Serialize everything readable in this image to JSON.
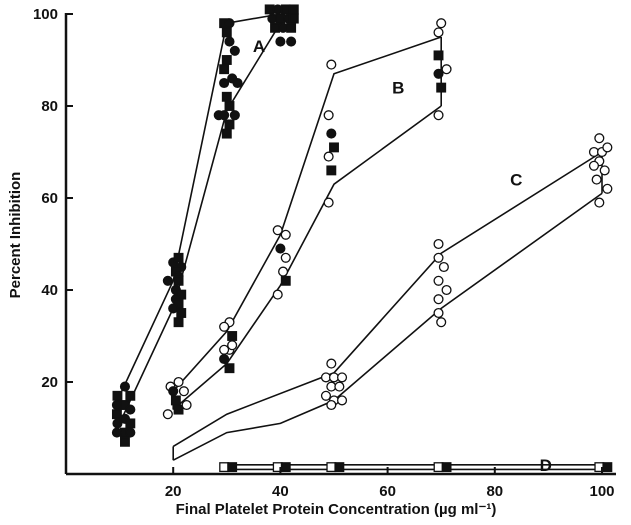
{
  "chart_data": {
    "type": "scatter",
    "xlabel": "Final Platelet Protein Concentration (µg ml⁻¹)",
    "ylabel": "Percent Inhibition",
    "xlim": [
      0,
      100
    ],
    "ylim": [
      0,
      100
    ],
    "xticks": [
      20,
      40,
      60,
      80,
      100
    ],
    "yticks": [
      20,
      40,
      60,
      80,
      100
    ],
    "xtick_labels": [
      "20",
      "40",
      "60",
      "80",
      "100"
    ],
    "ytick_labels": [
      "20",
      "40",
      "60",
      "80",
      "100"
    ],
    "grid": false,
    "colors": {
      "ink": "#111111",
      "background": "#ffffff"
    },
    "groups": [
      {
        "label": "A",
        "label_at": [
          36,
          93
        ],
        "band": {
          "upper": [
            [
              10,
              17
            ],
            [
              20,
              42
            ],
            [
              30,
              98
            ],
            [
              40,
              100
            ]
          ],
          "lower": [
            [
              10,
              11
            ],
            [
              20,
              36
            ],
            [
              30,
              79
            ],
            [
              40,
              98
            ]
          ]
        },
        "points": [
          {
            "x": 9.6,
            "y": 17,
            "m": "sq",
            "f": 1
          },
          {
            "x": 11,
            "y": 19,
            "m": "circ",
            "f": 1
          },
          {
            "x": 12,
            "y": 17,
            "m": "sq",
            "f": 1
          },
          {
            "x": 9.5,
            "y": 15,
            "m": "circ",
            "f": 1
          },
          {
            "x": 11,
            "y": 15,
            "m": "sq",
            "f": 1
          },
          {
            "x": 12,
            "y": 14,
            "m": "circ",
            "f": 1
          },
          {
            "x": 9.5,
            "y": 13,
            "m": "sq",
            "f": 1
          },
          {
            "x": 11,
            "y": 12,
            "m": "circ",
            "f": 1
          },
          {
            "x": 12,
            "y": 11,
            "m": "sq",
            "f": 1
          },
          {
            "x": 9.6,
            "y": 11,
            "m": "circ",
            "f": 1
          },
          {
            "x": 11,
            "y": 9,
            "m": "sq",
            "f": 1
          },
          {
            "x": 9.5,
            "y": 9,
            "m": "circ",
            "f": 1
          },
          {
            "x": 12,
            "y": 9,
            "m": "circ",
            "f": 1
          },
          {
            "x": 11,
            "y": 7,
            "m": "sq",
            "f": 1
          },
          {
            "x": 20,
            "y": 46,
            "m": "circ",
            "f": 1
          },
          {
            "x": 21,
            "y": 47,
            "m": "sq",
            "f": 1
          },
          {
            "x": 21.5,
            "y": 45,
            "m": "circ",
            "f": 1
          },
          {
            "x": 20.5,
            "y": 44,
            "m": "sq",
            "f": 1
          },
          {
            "x": 21,
            "y": 43,
            "m": "circ",
            "f": 1
          },
          {
            "x": 19,
            "y": 42,
            "m": "circ",
            "f": 1
          },
          {
            "x": 21,
            "y": 42,
            "m": "sq",
            "f": 1
          },
          {
            "x": 20.5,
            "y": 40,
            "m": "circ",
            "f": 1
          },
          {
            "x": 21.5,
            "y": 39,
            "m": "sq",
            "f": 1
          },
          {
            "x": 20.5,
            "y": 38,
            "m": "circ",
            "f": 1
          },
          {
            "x": 21,
            "y": 37,
            "m": "sq",
            "f": 1
          },
          {
            "x": 20,
            "y": 36,
            "m": "circ",
            "f": 1
          },
          {
            "x": 21.5,
            "y": 35,
            "m": "sq",
            "f": 1
          },
          {
            "x": 21,
            "y": 33,
            "m": "sq",
            "f": 1
          },
          {
            "x": 29.5,
            "y": 98,
            "m": "sq",
            "f": 1
          },
          {
            "x": 30.5,
            "y": 98,
            "m": "circ",
            "f": 1
          },
          {
            "x": 30,
            "y": 96,
            "m": "sq",
            "f": 1
          },
          {
            "x": 30.5,
            "y": 94,
            "m": "circ",
            "f": 1
          },
          {
            "x": 31.5,
            "y": 92,
            "m": "circ",
            "f": 1
          },
          {
            "x": 30,
            "y": 90,
            "m": "sq",
            "f": 1
          },
          {
            "x": 29.5,
            "y": 88,
            "m": "sq",
            "f": 1
          },
          {
            "x": 31,
            "y": 86,
            "m": "circ",
            "f": 1
          },
          {
            "x": 29.5,
            "y": 85,
            "m": "circ",
            "f": 1
          },
          {
            "x": 32,
            "y": 85,
            "m": "circ",
            "f": 1
          },
          {
            "x": 30,
            "y": 82,
            "m": "sq",
            "f": 1
          },
          {
            "x": 30.5,
            "y": 80,
            "m": "sq",
            "f": 1
          },
          {
            "x": 28.5,
            "y": 78,
            "m": "circ",
            "f": 1
          },
          {
            "x": 29.5,
            "y": 78,
            "m": "circ",
            "f": 1
          },
          {
            "x": 31.5,
            "y": 78,
            "m": "circ",
            "f": 1
          },
          {
            "x": 30.5,
            "y": 76,
            "m": "sq",
            "f": 1
          },
          {
            "x": 30,
            "y": 74,
            "m": "sq",
            "f": 1
          },
          {
            "x": 38,
            "y": 101,
            "m": "sq",
            "f": 1
          },
          {
            "x": 39.5,
            "y": 101,
            "m": "circ",
            "f": 1
          },
          {
            "x": 41,
            "y": 101,
            "m": "sq",
            "f": 1
          },
          {
            "x": 42.5,
            "y": 101,
            "m": "sq",
            "f": 1
          },
          {
            "x": 38.5,
            "y": 99,
            "m": "circ",
            "f": 1
          },
          {
            "x": 40,
            "y": 99,
            "m": "sq",
            "f": 1
          },
          {
            "x": 41.5,
            "y": 99,
            "m": "circ",
            "f": 1
          },
          {
            "x": 42.5,
            "y": 99,
            "m": "sq",
            "f": 1
          },
          {
            "x": 39,
            "y": 97,
            "m": "sq",
            "f": 1
          },
          {
            "x": 40.5,
            "y": 97,
            "m": "circ",
            "f": 1
          },
          {
            "x": 42,
            "y": 97,
            "m": "sq",
            "f": 1
          },
          {
            "x": 40,
            "y": 94,
            "m": "circ",
            "f": 1
          },
          {
            "x": 42,
            "y": 94,
            "m": "circ",
            "f": 1
          }
        ]
      },
      {
        "label": "B",
        "label_at": [
          62,
          84
        ],
        "band": {
          "upper": [
            [
              20,
              18
            ],
            [
              30,
              31
            ],
            [
              40,
              52
            ],
            [
              50,
              87
            ],
            [
              70,
              95
            ]
          ],
          "lower": [
            [
              20,
              14
            ],
            [
              30,
              24
            ],
            [
              40,
              41
            ],
            [
              50,
              63
            ],
            [
              70,
              80
            ]
          ]
        },
        "points": [
          {
            "x": 19.5,
            "y": 19,
            "m": "circ",
            "f": 0
          },
          {
            "x": 21,
            "y": 20,
            "m": "circ",
            "f": 0
          },
          {
            "x": 22,
            "y": 18,
            "m": "circ",
            "f": 0
          },
          {
            "x": 20,
            "y": 18,
            "m": "circ",
            "f": 1
          },
          {
            "x": 19,
            "y": 13,
            "m": "circ",
            "f": 0
          },
          {
            "x": 20.5,
            "y": 16,
            "m": "sq",
            "f": 1
          },
          {
            "x": 21,
            "y": 14,
            "m": "sq",
            "f": 1
          },
          {
            "x": 22.5,
            "y": 15,
            "m": "circ",
            "f": 0
          },
          {
            "x": 30.5,
            "y": 33,
            "m": "circ",
            "f": 0
          },
          {
            "x": 29.5,
            "y": 32,
            "m": "circ",
            "f": 0
          },
          {
            "x": 31,
            "y": 30,
            "m": "sq",
            "f": 1
          },
          {
            "x": 30.5,
            "y": 27,
            "m": "circ",
            "f": 0
          },
          {
            "x": 29.5,
            "y": 25,
            "m": "circ",
            "f": 1
          },
          {
            "x": 31,
            "y": 28,
            "m": "circ",
            "f": 0
          },
          {
            "x": 30.5,
            "y": 23,
            "m": "sq",
            "f": 1
          },
          {
            "x": 29.5,
            "y": 27,
            "m": "circ",
            "f": 0
          },
          {
            "x": 39.5,
            "y": 53,
            "m": "circ",
            "f": 0
          },
          {
            "x": 41,
            "y": 52,
            "m": "circ",
            "f": 0
          },
          {
            "x": 40,
            "y": 49,
            "m": "circ",
            "f": 1
          },
          {
            "x": 41,
            "y": 47,
            "m": "circ",
            "f": 0
          },
          {
            "x": 40.5,
            "y": 44,
            "m": "circ",
            "f": 0
          },
          {
            "x": 41,
            "y": 42,
            "m": "sq",
            "f": 1
          },
          {
            "x": 39.5,
            "y": 39,
            "m": "circ",
            "f": 0
          },
          {
            "x": 49.5,
            "y": 89,
            "m": "circ",
            "f": 0
          },
          {
            "x": 49,
            "y": 78,
            "m": "circ",
            "f": 0
          },
          {
            "x": 49.5,
            "y": 74,
            "m": "circ",
            "f": 1
          },
          {
            "x": 50,
            "y": 71,
            "m": "sq",
            "f": 1
          },
          {
            "x": 49,
            "y": 69,
            "m": "circ",
            "f": 0
          },
          {
            "x": 49.5,
            "y": 66,
            "m": "sq",
            "f": 1
          },
          {
            "x": 49,
            "y": 59,
            "m": "circ",
            "f": 0
          },
          {
            "x": 70,
            "y": 98,
            "m": "circ",
            "f": 0
          },
          {
            "x": 69.5,
            "y": 96,
            "m": "circ",
            "f": 0
          },
          {
            "x": 69.5,
            "y": 91,
            "m": "sq",
            "f": 1
          },
          {
            "x": 71,
            "y": 88,
            "m": "circ",
            "f": 0
          },
          {
            "x": 69.5,
            "y": 87,
            "m": "circ",
            "f": 1
          },
          {
            "x": 70,
            "y": 84,
            "m": "sq",
            "f": 1
          },
          {
            "x": 69.5,
            "y": 78,
            "m": "circ",
            "f": 0
          }
        ]
      },
      {
        "label": "C",
        "label_at": [
          84,
          64
        ],
        "band": {
          "upper": [
            [
              20,
              6
            ],
            [
              30,
              13
            ],
            [
              50,
              22
            ],
            [
              70,
              48
            ],
            [
              100,
              70
            ]
          ],
          "lower": [
            [
              20,
              3
            ],
            [
              30,
              9
            ],
            [
              40,
              11
            ],
            [
              50,
              16
            ],
            [
              70,
              36
            ],
            [
              100,
              61
            ]
          ]
        },
        "points": [
          {
            "x": 49.5,
            "y": 24,
            "m": "circ",
            "f": 0
          },
          {
            "x": 48.5,
            "y": 21,
            "m": "circ",
            "f": 0
          },
          {
            "x": 50,
            "y": 21,
            "m": "circ",
            "f": 0
          },
          {
            "x": 51.5,
            "y": 21,
            "m": "circ",
            "f": 0
          },
          {
            "x": 49.5,
            "y": 19,
            "m": "circ",
            "f": 0
          },
          {
            "x": 51,
            "y": 19,
            "m": "circ",
            "f": 0
          },
          {
            "x": 48.5,
            "y": 17,
            "m": "circ",
            "f": 0
          },
          {
            "x": 50,
            "y": 16,
            "m": "circ",
            "f": 0
          },
          {
            "x": 51.5,
            "y": 16,
            "m": "circ",
            "f": 0
          },
          {
            "x": 49.5,
            "y": 15,
            "m": "circ",
            "f": 0
          },
          {
            "x": 69.5,
            "y": 50,
            "m": "circ",
            "f": 0
          },
          {
            "x": 69.5,
            "y": 47,
            "m": "circ",
            "f": 0
          },
          {
            "x": 70.5,
            "y": 45,
            "m": "circ",
            "f": 0
          },
          {
            "x": 69.5,
            "y": 42,
            "m": "circ",
            "f": 0
          },
          {
            "x": 71,
            "y": 40,
            "m": "circ",
            "f": 0
          },
          {
            "x": 69.5,
            "y": 38,
            "m": "circ",
            "f": 0
          },
          {
            "x": 69.5,
            "y": 35,
            "m": "circ",
            "f": 0
          },
          {
            "x": 70,
            "y": 33,
            "m": "circ",
            "f": 0
          },
          {
            "x": 99.5,
            "y": 73,
            "m": "circ",
            "f": 0
          },
          {
            "x": 98.5,
            "y": 70,
            "m": "circ",
            "f": 0
          },
          {
            "x": 100,
            "y": 70,
            "m": "circ",
            "f": 0
          },
          {
            "x": 101,
            "y": 71,
            "m": "circ",
            "f": 0
          },
          {
            "x": 99.5,
            "y": 68,
            "m": "circ",
            "f": 0
          },
          {
            "x": 98.5,
            "y": 67,
            "m": "circ",
            "f": 0
          },
          {
            "x": 100.5,
            "y": 66,
            "m": "circ",
            "f": 0
          },
          {
            "x": 99,
            "y": 64,
            "m": "circ",
            "f": 0
          },
          {
            "x": 101,
            "y": 62,
            "m": "circ",
            "f": 0
          },
          {
            "x": 99.5,
            "y": 59,
            "m": "circ",
            "f": 0
          }
        ]
      },
      {
        "label": "D",
        "label_at": [
          89.5,
          2
        ],
        "band": {
          "upper": [
            [
              30,
              2
            ],
            [
              100,
              2
            ]
          ],
          "lower": [
            [
              30,
              1
            ],
            [
              100,
              1
            ]
          ]
        },
        "points": [
          {
            "x": 29.5,
            "y": 1.5,
            "m": "sq",
            "f": 0
          },
          {
            "x": 31,
            "y": 1.5,
            "m": "sq",
            "f": 1
          },
          {
            "x": 39.5,
            "y": 1.5,
            "m": "sq",
            "f": 0
          },
          {
            "x": 41,
            "y": 1.5,
            "m": "sq",
            "f": 1
          },
          {
            "x": 49.5,
            "y": 1.5,
            "m": "sq",
            "f": 0
          },
          {
            "x": 51,
            "y": 1.5,
            "m": "sq",
            "f": 1
          },
          {
            "x": 69.5,
            "y": 1.5,
            "m": "sq",
            "f": 0
          },
          {
            "x": 71,
            "y": 1.5,
            "m": "sq",
            "f": 1
          },
          {
            "x": 99.5,
            "y": 1.5,
            "m": "sq",
            "f": 0
          },
          {
            "x": 101,
            "y": 1.5,
            "m": "sq",
            "f": 1
          }
        ]
      }
    ]
  }
}
